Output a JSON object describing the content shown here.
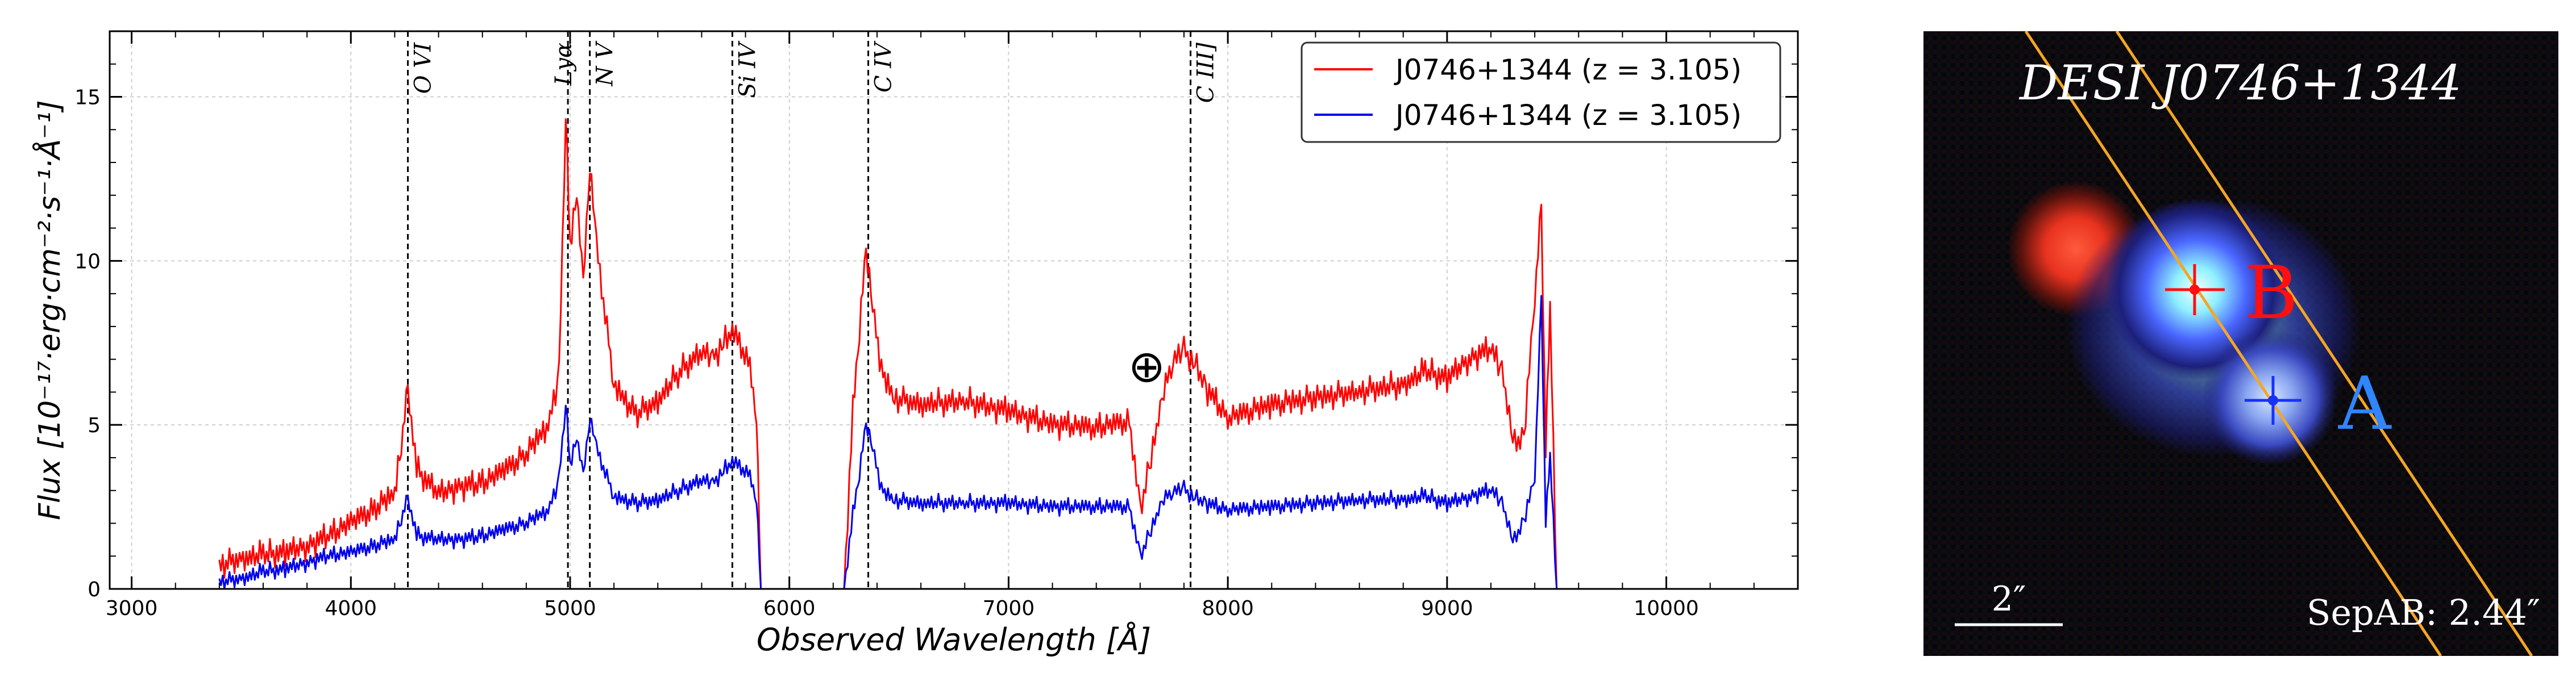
{
  "chart_data": [
    {
      "type": "line",
      "title": "",
      "xlabel": "Observed Wavelength [Å]",
      "ylabel": "Flux [10⁻¹⁷·erg·cm⁻²·s⁻¹·Å⁻¹]",
      "xlim": [
        2900,
        10600
      ],
      "ylim": [
        0,
        17
      ],
      "x_ticks": [
        3000,
        4000,
        5000,
        6000,
        7000,
        8000,
        9000,
        10000
      ],
      "y_ticks": [
        0,
        5,
        10,
        15
      ],
      "grid": true,
      "legend_position": "top-right",
      "series": [
        {
          "name": "J0746+1344 (z = 3.105)",
          "color": "#ff0000",
          "x": [
            3400,
            3500,
            3600,
            3700,
            3800,
            3900,
            4000,
            4100,
            4200,
            4230,
            4260,
            4300,
            4400,
            4500,
            4600,
            4700,
            4800,
            4900,
            4950,
            4980,
            5000,
            5030,
            5060,
            5090,
            5120,
            5200,
            5300,
            5400,
            5500,
            5600,
            5650,
            5700,
            5740,
            5780,
            5820,
            5850,
            5870,
            6250,
            6290,
            6320,
            6350,
            6380,
            6420,
            6480,
            6600,
            6800,
            7000,
            7200,
            7400,
            7550,
            7600,
            7650,
            7700,
            7750,
            7800,
            7850,
            7900,
            8000,
            8200,
            8400,
            8600,
            8800,
            8900,
            9000,
            9100,
            9200,
            9250,
            9300,
            9350,
            9400,
            9430,
            9450,
            9470,
            9500
          ],
          "y": [
            0.7,
            0.9,
            1.0,
            1.1,
            1.3,
            1.6,
            2.0,
            2.4,
            2.9,
            4.5,
            6.0,
            3.6,
            2.9,
            3.1,
            3.2,
            3.6,
            4.1,
            5.0,
            6.5,
            14.5,
            10.5,
            12.2,
            9.2,
            12.9,
            10.5,
            6.2,
            5.3,
            5.7,
            6.6,
            7.2,
            7.0,
            7.5,
            7.9,
            7.4,
            6.7,
            5.2,
            0.0,
            0.0,
            5.5,
            8.0,
            10.3,
            8.6,
            6.6,
            5.8,
            5.6,
            5.7,
            5.4,
            5.0,
            4.9,
            5.1,
            2.4,
            4.0,
            5.7,
            7.0,
            7.2,
            6.9,
            6.1,
            5.2,
            5.6,
            5.8,
            6.0,
            6.2,
            6.6,
            6.4,
            7.0,
            7.3,
            6.6,
            4.6,
            4.5,
            9.0,
            11.5,
            4.2,
            8.5,
            0.0
          ]
        },
        {
          "name": "J0746+1344 (z = 3.105)",
          "color": "#0000ee",
          "x": [
            3400,
            3500,
            3600,
            3700,
            3800,
            3900,
            4000,
            4100,
            4200,
            4230,
            4260,
            4300,
            4400,
            4500,
            4600,
            4700,
            4800,
            4900,
            4950,
            4980,
            5000,
            5030,
            5060,
            5090,
            5120,
            5200,
            5300,
            5400,
            5500,
            5600,
            5650,
            5700,
            5740,
            5780,
            5820,
            5850,
            5870,
            6250,
            6290,
            6320,
            6350,
            6380,
            6420,
            6480,
            6600,
            6800,
            7000,
            7200,
            7400,
            7550,
            7600,
            7650,
            7700,
            7750,
            7800,
            7850,
            7900,
            8000,
            8200,
            8400,
            8600,
            8800,
            8900,
            9000,
            9100,
            9200,
            9250,
            9300,
            9350,
            9400,
            9430,
            9450,
            9470,
            9500
          ],
          "y": [
            0.2,
            0.3,
            0.5,
            0.6,
            0.8,
            1.0,
            1.1,
            1.3,
            1.5,
            2.2,
            2.7,
            1.6,
            1.5,
            1.5,
            1.6,
            1.8,
            2.0,
            2.4,
            3.3,
            5.7,
            3.8,
            4.7,
            3.4,
            5.2,
            4.3,
            2.8,
            2.6,
            2.7,
            3.0,
            3.3,
            3.2,
            3.6,
            3.9,
            3.7,
            3.4,
            2.7,
            0.0,
            0.0,
            2.3,
            3.6,
            5.0,
            4.3,
            3.0,
            2.7,
            2.6,
            2.6,
            2.6,
            2.5,
            2.5,
            2.5,
            1.0,
            1.8,
            2.6,
            3.0,
            3.0,
            2.8,
            2.6,
            2.4,
            2.5,
            2.6,
            2.7,
            2.7,
            2.8,
            2.6,
            2.8,
            3.0,
            2.6,
            1.5,
            2.0,
            3.5,
            8.8,
            2.0,
            4.0,
            0.0
          ]
        }
      ],
      "emission_lines": [
        {
          "label": "O VI",
          "x": 4260
        },
        {
          "label": "Lyα",
          "x": 4990
        },
        {
          "label": "N V",
          "x": 5090
        },
        {
          "label": "Si IV",
          "x": 5740
        },
        {
          "label": "C IV",
          "x": 6360
        },
        {
          "label": "C III]",
          "x": 7830
        }
      ],
      "annotations": [
        {
          "text": "⊕",
          "x": 7630,
          "y": 6.8,
          "meaning": "telluric absorption"
        }
      ]
    }
  ],
  "cutout": {
    "title": "DESI J0746+1344",
    "label_a": "A",
    "label_b": "B",
    "scale_label": "2″",
    "separation_text": "SepAB: 2.44″",
    "colors": {
      "background": "#07060a",
      "label_a": "#2f86ff",
      "label_b": "#ff1010",
      "slit": "#f5a623",
      "red_source": "#ff4a30",
      "blue_glow": "#4a66ff"
    }
  }
}
